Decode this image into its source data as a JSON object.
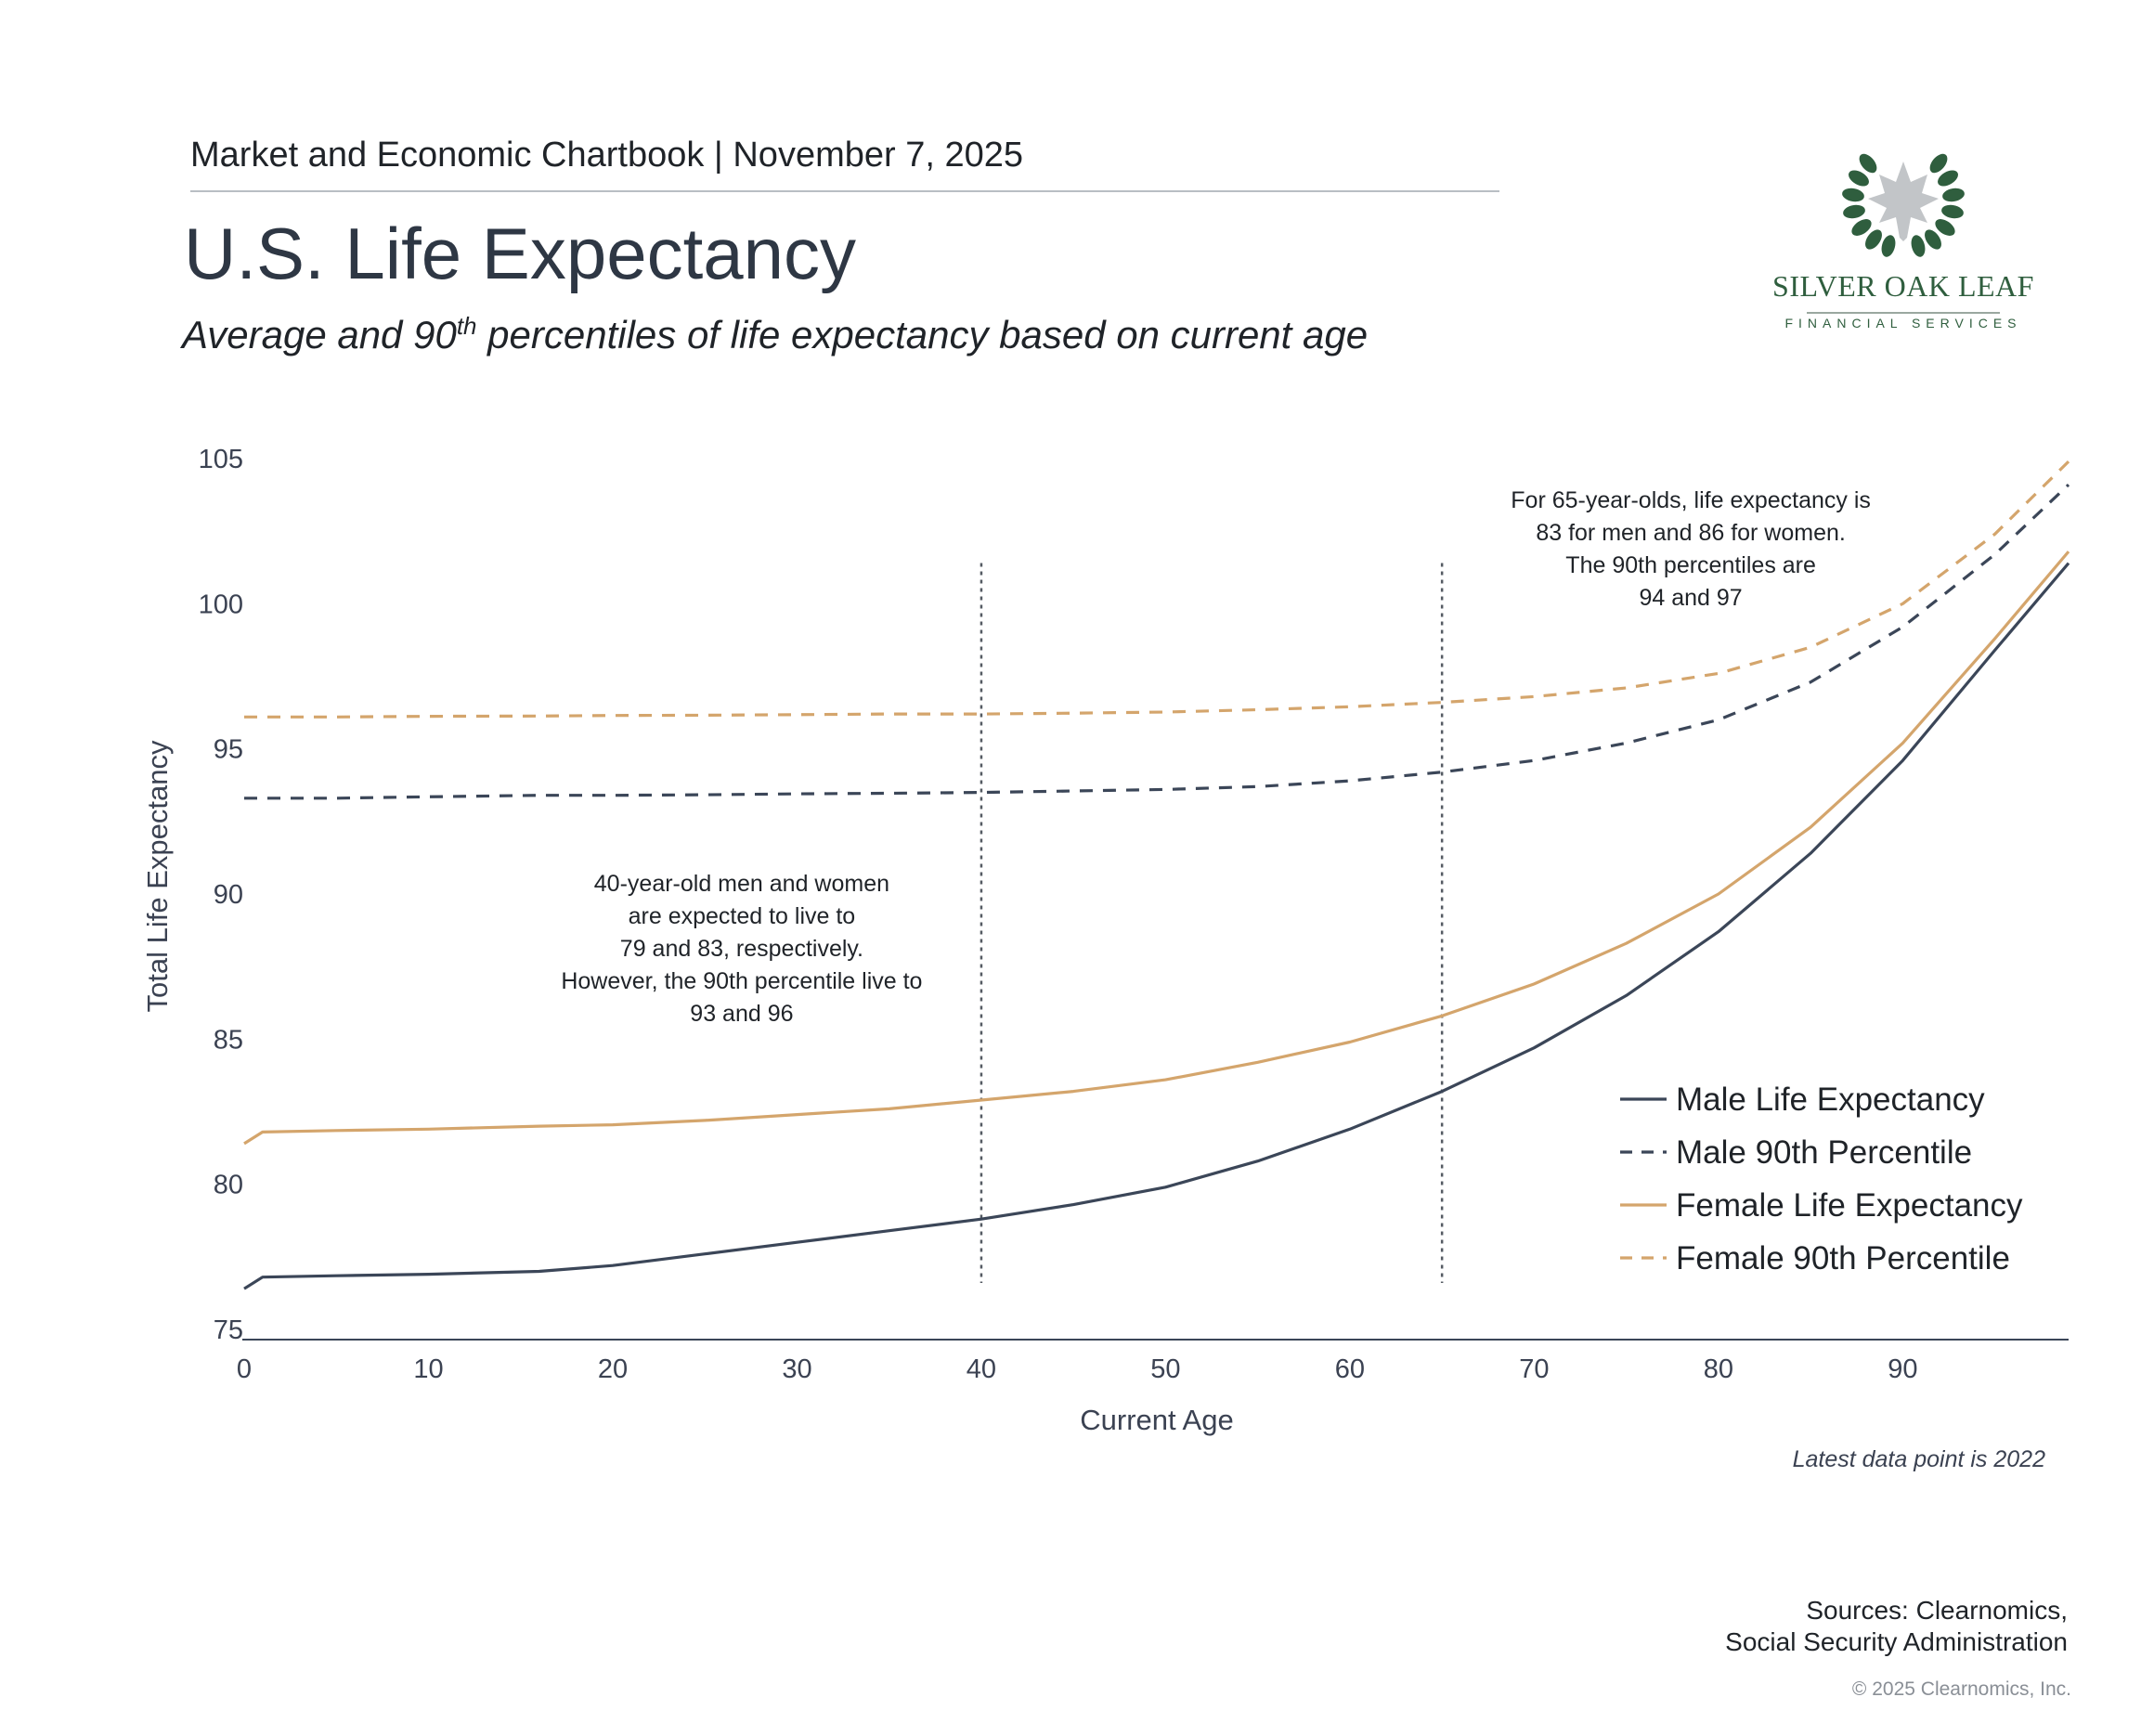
{
  "header": {
    "text": "Market and Economic Chartbook | November 7, 2025",
    "title": "U.S. Life Expectancy",
    "subtitle_before": "Average and 90",
    "subtitle_sup": "th",
    "subtitle_after": " percentiles of life expectancy based on current age"
  },
  "logo": {
    "name": "SILVER OAK LEAF",
    "tagline": "FINANCIAL SERVICES",
    "icon": "oak-leaf-laurel-icon",
    "color": "#2f5e3e"
  },
  "chart_data": {
    "type": "line",
    "xlabel": "Current Age",
    "ylabel": "Total Life Expectancy",
    "xlim": [
      0,
      99
    ],
    "ylim": [
      75,
      105
    ],
    "x_ticks": [
      "0",
      "10",
      "20",
      "30",
      "40",
      "50",
      "60",
      "70",
      "80",
      "90"
    ],
    "y_ticks": [
      "75",
      "80",
      "85",
      "90",
      "95",
      "100",
      "105"
    ],
    "grid": false,
    "legend_position": "bottom-right",
    "x": [
      0,
      1,
      5,
      10,
      16,
      20,
      25,
      30,
      35,
      40,
      45,
      50,
      55,
      60,
      65,
      70,
      75,
      80,
      85,
      90,
      95,
      99
    ],
    "series": [
      {
        "name": "Male Life Expectancy",
        "style": "solid",
        "color": "#3b4658",
        "values": [
          76.4,
          76.8,
          76.85,
          76.9,
          77.0,
          77.2,
          77.6,
          78.0,
          78.4,
          78.8,
          79.3,
          79.9,
          80.8,
          81.9,
          83.2,
          84.7,
          86.5,
          88.7,
          91.4,
          94.6,
          98.4,
          101.4
        ]
      },
      {
        "name": "Male 90th Percentile",
        "style": "dashed",
        "color": "#3b4658",
        "values": [
          93.3,
          93.3,
          93.3,
          93.35,
          93.4,
          93.4,
          93.42,
          93.45,
          93.47,
          93.5,
          93.55,
          93.6,
          93.7,
          93.9,
          94.2,
          94.6,
          95.2,
          96.0,
          97.3,
          99.2,
          101.7,
          104.1
        ]
      },
      {
        "name": "Female Life Expectancy",
        "style": "solid",
        "color": "#d4a56c",
        "values": [
          81.4,
          81.8,
          81.85,
          81.9,
          82.0,
          82.05,
          82.2,
          82.4,
          82.6,
          82.9,
          83.2,
          83.6,
          84.2,
          84.9,
          85.8,
          86.9,
          88.3,
          90.0,
          92.3,
          95.2,
          98.8,
          101.8
        ]
      },
      {
        "name": "Female 90th Percentile",
        "style": "dashed",
        "color": "#d4a56c",
        "values": [
          96.1,
          96.1,
          96.1,
          96.12,
          96.13,
          96.15,
          96.16,
          96.18,
          96.2,
          96.2,
          96.23,
          96.27,
          96.35,
          96.45,
          96.6,
          96.8,
          97.1,
          97.6,
          98.5,
          100.0,
          102.4,
          104.9
        ]
      }
    ],
    "reference_lines": [
      {
        "x": 40,
        "y_from": 76.6,
        "y_to": 101.4
      },
      {
        "x": 65,
        "y_from": 76.6,
        "y_to": 101.4
      }
    ],
    "annotations": [
      {
        "anchor_x": 27,
        "anchor_y": 90.1,
        "lines": [
          "40-year-old men and women",
          "are expected to live to",
          "79 and 83, respectively.",
          "However, the 90th percentile live to",
          "93 and 96"
        ]
      },
      {
        "anchor_x": 78.5,
        "anchor_y": 103.3,
        "lines": [
          "For 65-year-olds, life expectancy is",
          "83 for men and 86 for women.",
          "The 90th percentiles are",
          "94 and 97"
        ]
      }
    ],
    "note": "Latest data point is 2022"
  },
  "footer": {
    "source_line1": "Sources: Clearnomics,",
    "source_line2": "Social Security Administration",
    "copyright": "© 2025 Clearnomics, Inc."
  }
}
